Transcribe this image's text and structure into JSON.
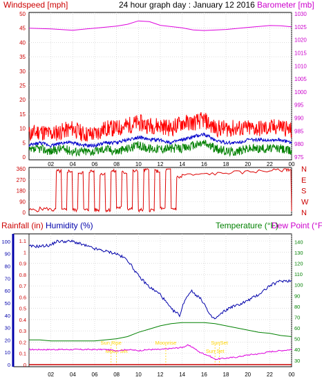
{
  "header": {
    "title": "24 hour graph day : January 12 2016",
    "wind_label": "Windspeed [mph]",
    "baro_label": "Barometer [mb]"
  },
  "lower_header": {
    "rain_label": "Rainfall (in)",
    "humidity_label": "Humidity (%)",
    "temp_label": "Temperature (°F)",
    "dew_label": "Dew Point (°F)"
  },
  "colors": {
    "wind": "#ff0000",
    "gust": "#ff0000",
    "avg_wind": "#0000cc",
    "low_wind": "#008000",
    "barometer": "#dd00dd",
    "direction": "#dd0000",
    "rain": "#cc0000",
    "humidity": "#0000aa",
    "temperature": "#008000",
    "dew_point": "#dd00dd",
    "sun": "#ffd400",
    "grid": "#c8c8c8"
  },
  "chart_data": [
    {
      "type": "line",
      "name": "wind-barometer",
      "x_ticks": [
        "02",
        "04",
        "06",
        "08",
        "10",
        "12",
        "14",
        "16",
        "18",
        "20",
        "22",
        "00"
      ],
      "x_range": [
        0,
        24
      ],
      "left_axis": {
        "ticks": [
          0,
          5,
          10,
          15,
          20,
          25,
          30,
          35,
          40,
          45,
          50
        ],
        "ylim": [
          0,
          50
        ]
      },
      "right_axis": {
        "ticks": [
          975,
          980,
          985,
          990,
          995,
          1000,
          1005,
          1010,
          1015,
          1020,
          1025,
          1030
        ],
        "ylim": [
          975,
          1030
        ]
      },
      "series": [
        {
          "id": "barometer",
          "axis": "right",
          "x": [
            0,
            2,
            4,
            6,
            8,
            9,
            10,
            11,
            12,
            14,
            15,
            16,
            18,
            20,
            22,
            23,
            24
          ],
          "values": [
            1024.5,
            1024.2,
            1023.7,
            1024.5,
            1025.3,
            1026.0,
            1027.3,
            1027.0,
            1025.6,
            1024.6,
            1023.8,
            1023.6,
            1024.0,
            1024.8,
            1025.5,
            1025.4,
            1025.0
          ]
        },
        {
          "id": "wind-gust",
          "axis": "left",
          "x": [
            0,
            1,
            2,
            3,
            4,
            5,
            6,
            7,
            8,
            9,
            10,
            11,
            12,
            13,
            14,
            15,
            16,
            17,
            18,
            19,
            20,
            21,
            22,
            23,
            24
          ],
          "values": [
            8,
            9,
            8,
            9,
            10,
            8,
            8,
            10,
            10,
            11,
            12,
            11,
            11,
            10,
            12,
            12,
            13,
            10,
            10,
            10,
            10,
            10,
            10,
            11,
            9
          ]
        },
        {
          "id": "wind-avg",
          "axis": "left",
          "x": [
            0,
            1,
            2,
            3,
            4,
            5,
            6,
            7,
            8,
            9,
            10,
            11,
            12,
            13,
            14,
            15,
            16,
            17,
            18,
            19,
            20,
            21,
            22,
            23,
            24
          ],
          "values": [
            4,
            5,
            4,
            5,
            5,
            4,
            4,
            5,
            5,
            6,
            7,
            6,
            6,
            5,
            6,
            7,
            8,
            6,
            5,
            5,
            6,
            6,
            6,
            6,
            5
          ]
        },
        {
          "id": "wind-low",
          "axis": "left",
          "x": [
            0,
            1,
            2,
            3,
            4,
            5,
            6,
            7,
            8,
            9,
            10,
            11,
            12,
            13,
            14,
            15,
            16,
            17,
            18,
            19,
            20,
            21,
            22,
            23,
            24
          ],
          "values": [
            2,
            3,
            2,
            3,
            2,
            2,
            2,
            3,
            2,
            3,
            4,
            3,
            3,
            3,
            3,
            4,
            5,
            3,
            2,
            2,
            3,
            3,
            3,
            3,
            2
          ]
        }
      ]
    },
    {
      "type": "line",
      "name": "wind-direction",
      "x_ticks": [
        "02",
        "04",
        "06",
        "08",
        "10",
        "12",
        "14",
        "16",
        "18",
        "20",
        "22",
        "00"
      ],
      "x_range": [
        0,
        24
      ],
      "left_axis": {
        "ticks": [
          0,
          90,
          180,
          270,
          360
        ],
        "ylim": [
          0,
          360
        ]
      },
      "right_labels": [
        "N",
        "W",
        "S",
        "E",
        "N"
      ],
      "series": [
        {
          "id": "direction",
          "x": [
            0,
            1,
            2,
            2.5,
            3,
            3.5,
            4,
            4.5,
            5,
            5.5,
            6,
            6.5,
            7,
            7.5,
            8,
            8.5,
            9,
            9.5,
            10,
            10.5,
            11,
            11.5,
            12,
            12.5,
            13,
            13.5,
            14,
            16,
            18,
            20,
            22,
            23.5,
            24
          ],
          "values": [
            20,
            30,
            20,
            340,
            20,
            340,
            20,
            330,
            20,
            340,
            20,
            320,
            20,
            340,
            40,
            330,
            30,
            340,
            20,
            350,
            20,
            340,
            30,
            350,
            30,
            290,
            310,
            320,
            330,
            340,
            350,
            355,
            10
          ]
        }
      ]
    },
    {
      "type": "line",
      "name": "rain-humidity-temperature",
      "x_ticks": [
        "02",
        "04",
        "06",
        "08",
        "10",
        "12",
        "14",
        "16",
        "18",
        "20",
        "22",
        "00"
      ],
      "x_range": [
        0,
        24
      ],
      "rain_axis": {
        "ticks": [
          0,
          0.1,
          0.2,
          0.3,
          0.4,
          0.5,
          0.6,
          0.7,
          0.8,
          0.9,
          1,
          1.1
        ],
        "ylim": [
          0,
          1.15
        ]
      },
      "humidity_axis": {
        "ticks": [
          0,
          10,
          20,
          30,
          40,
          50,
          60,
          70,
          80,
          90,
          100
        ],
        "ylim": [
          0,
          105
        ]
      },
      "temp_axis": {
        "ticks": [
          30,
          40,
          50,
          60,
          70,
          80,
          90,
          100,
          110,
          120,
          130,
          140
        ],
        "ylim": [
          26,
          146
        ]
      },
      "annotations": [
        {
          "label": "Sun Rise",
          "x": 7.5
        },
        {
          "label": "Moon Set",
          "x": 8.0
        },
        {
          "label": "Moonrise",
          "x": 12.5
        },
        {
          "label": "Sun Set",
          "x": 17.0
        },
        {
          "label": "SunSet",
          "x": 17.4
        }
      ],
      "series": [
        {
          "id": "humidity",
          "axis": "humidity",
          "x": [
            0,
            1,
            2,
            2.5,
            4,
            5,
            6,
            7,
            8,
            9,
            10,
            11,
            12,
            13,
            13.8,
            14.2,
            14.8,
            15.5,
            16,
            16.5,
            17,
            17.8,
            18.5,
            19,
            20,
            21,
            22,
            23,
            24
          ],
          "values": [
            96,
            96,
            97,
            100,
            100,
            97,
            94,
            92,
            90,
            85,
            72,
            63,
            57,
            45,
            40,
            52,
            60,
            55,
            50,
            40,
            37,
            43,
            47,
            48,
            52,
            57,
            64,
            68,
            68
          ]
        },
        {
          "id": "temperature",
          "axis": "temp",
          "x": [
            0,
            1,
            2,
            4,
            6,
            8,
            9,
            10,
            11,
            12,
            13,
            14,
            15,
            16,
            17,
            18,
            19,
            20,
            21,
            22,
            23,
            24
          ],
          "values": [
            49,
            49,
            48,
            48,
            48,
            50,
            52,
            56,
            59,
            62,
            64,
            65,
            65,
            65,
            64,
            62,
            60,
            58,
            56,
            55,
            53,
            52
          ]
        },
        {
          "id": "dew-point",
          "axis": "temp",
          "x": [
            0,
            1,
            2,
            4,
            6,
            7,
            8,
            9,
            10,
            11,
            12,
            13,
            14,
            14.5,
            15,
            15.5,
            16,
            16.5,
            17,
            18,
            19,
            20,
            21,
            22,
            23,
            24
          ],
          "values": [
            40,
            40,
            40,
            40,
            40,
            40,
            39,
            40,
            39,
            40,
            40,
            41,
            42,
            44,
            42,
            38,
            36,
            34,
            31,
            32,
            33,
            35,
            36,
            38,
            39,
            40
          ]
        },
        {
          "id": "rainfall",
          "axis": "rain",
          "x": [
            0,
            24
          ],
          "values": [
            0,
            0
          ]
        }
      ]
    }
  ]
}
